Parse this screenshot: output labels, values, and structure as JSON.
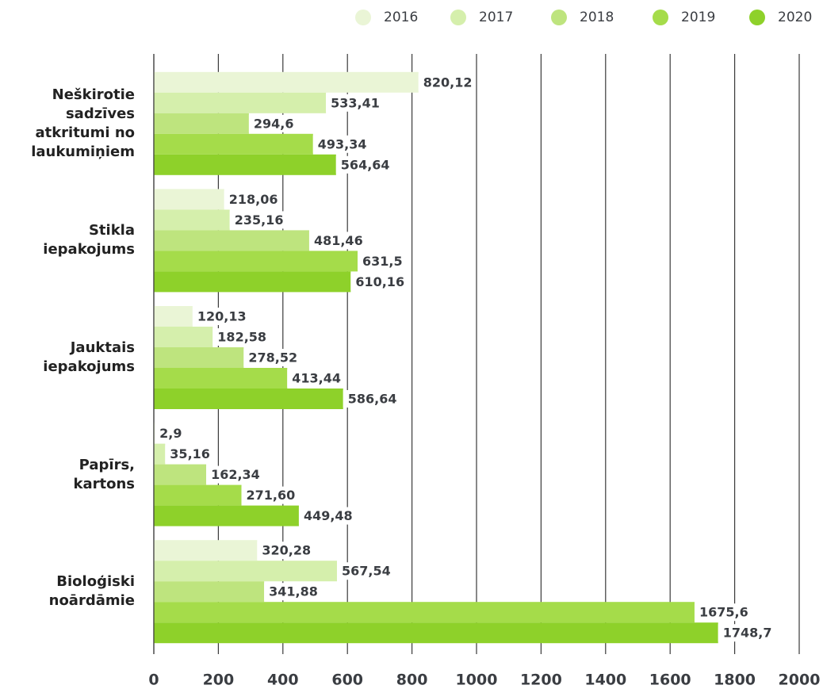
{
  "chart_data": {
    "type": "bar",
    "orientation": "horizontal",
    "categories": [
      "Neškirotie sadzīves atkritumi no laukumiņiem",
      "Stikla iepakojums",
      "Jauktais iepakojums",
      "Papīrs, kartons",
      "Bioloģiski noārdāmie"
    ],
    "series": [
      {
        "name": "2016",
        "color": "#eaf5d6",
        "values": [
          820.12,
          218.06,
          120.13,
          2.9,
          320.28
        ],
        "value_labels": [
          "820,12",
          "218,06",
          "120,13",
          "2,9",
          "320,28"
        ]
      },
      {
        "name": "2017",
        "color": "#d5efac",
        "values": [
          533.41,
          235.16,
          182.58,
          35.16,
          567.54
        ],
        "value_labels": [
          "533,41",
          "235,16",
          "182,58",
          "35,16",
          "567,54"
        ]
      },
      {
        "name": "2018",
        "color": "#bee47e",
        "values": [
          294.6,
          481.46,
          278.52,
          162.34,
          341.88
        ],
        "value_labels": [
          "294,6",
          "481,46",
          "278,52",
          "162,34",
          "341,88"
        ]
      },
      {
        "name": "2019",
        "color": "#a5dc4a",
        "values": [
          493.34,
          631.5,
          413.44,
          271.6,
          1675.6
        ],
        "value_labels": [
          "493,34",
          "631,5",
          "413,44",
          "271,60",
          "1675,6"
        ]
      },
      {
        "name": "2020",
        "color": "#8ed12a",
        "values": [
          564.64,
          610.16,
          586.64,
          449.48,
          1748.7
        ],
        "value_labels": [
          "564,64",
          "610,16",
          "586,64",
          "449,48",
          "1748,7"
        ]
      }
    ],
    "xlim": [
      0,
      2000
    ],
    "xticks": [
      0,
      200,
      400,
      600,
      800,
      1000,
      1200,
      1400,
      1600,
      1800,
      2000
    ],
    "grid": true,
    "legend": "top-right"
  }
}
